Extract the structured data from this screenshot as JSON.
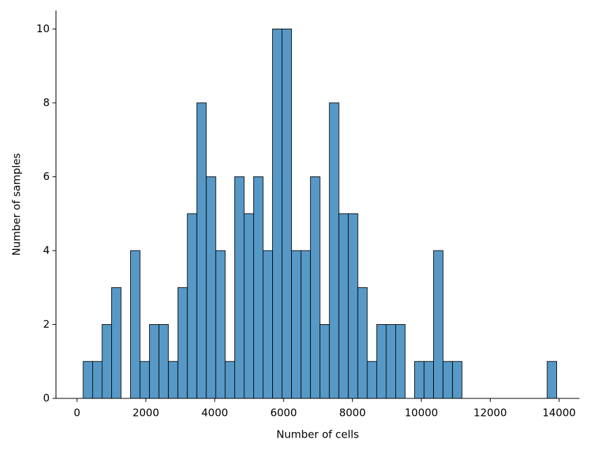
{
  "chart_data": {
    "type": "histogram",
    "xlabel": "Number of cells",
    "ylabel": "Number of samples",
    "color": "#5799c6",
    "edgecolor": "#000000",
    "bins": [
      180,
      455,
      730,
      1005,
      1280,
      1555,
      1830,
      2105,
      2380,
      2655,
      2930,
      3205,
      3480,
      3755,
      4030,
      4305,
      4580,
      4855,
      5130,
      5405,
      5680,
      5955,
      6230,
      6505,
      6780,
      7055,
      7330,
      7605,
      7880,
      8155,
      8430,
      8705,
      8980,
      9255,
      9530,
      9805,
      10080,
      10355,
      10630,
      10905,
      11180,
      11455,
      11730,
      12005,
      12280,
      12555,
      12830,
      13105,
      13380,
      13655,
      13930
    ],
    "values": [
      1,
      1,
      2,
      3,
      0,
      4,
      1,
      2,
      2,
      1,
      3,
      5,
      8,
      6,
      4,
      1,
      6,
      5,
      6,
      4,
      10,
      10,
      4,
      4,
      6,
      2,
      8,
      5,
      5,
      3,
      1,
      2,
      2,
      2,
      0,
      1,
      1,
      4,
      1,
      1,
      0,
      0,
      0,
      0,
      0,
      0,
      0,
      0,
      0,
      1
    ],
    "xlim": [
      -610,
      14590
    ],
    "ylim": [
      0,
      10.5
    ],
    "xticks": [
      0,
      2000,
      4000,
      6000,
      8000,
      10000,
      12000,
      14000
    ],
    "yticks": [
      0,
      2,
      4,
      6,
      8,
      10
    ],
    "grid": false
  }
}
